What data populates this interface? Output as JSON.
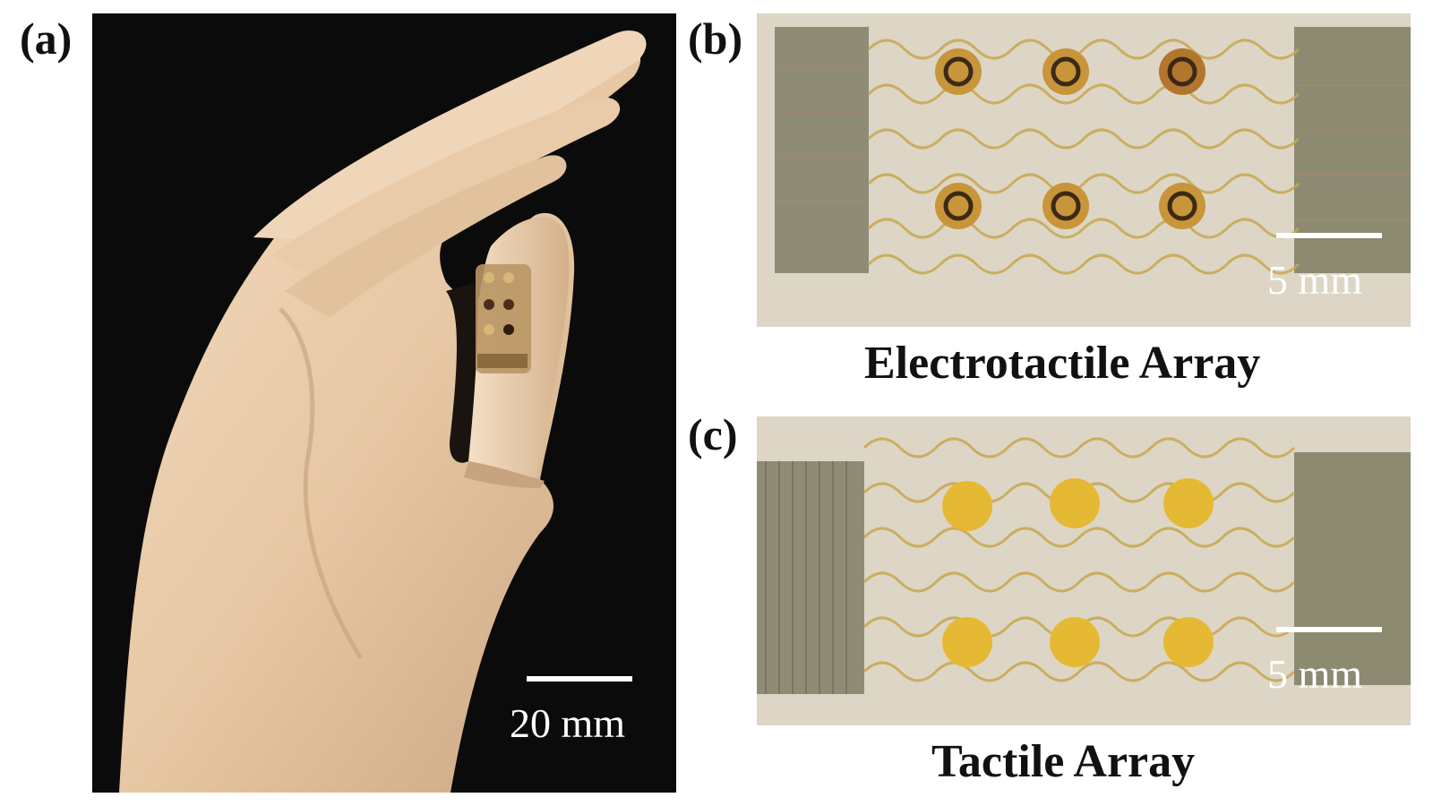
{
  "panels": {
    "a": {
      "label": "(a)",
      "scale_label": "20 mm"
    },
    "b": {
      "label": "(b)",
      "scale_label": "5 mm",
      "caption": "Electrotactile Array"
    },
    "c": {
      "label": "(c)",
      "scale_label": "5 mm",
      "caption": "Tactile Array"
    }
  },
  "colors": {
    "background_dark": "#0b0b0b",
    "skin": "#e8c9a8",
    "substrate": "#ddd6c6",
    "gold_trace": "#c8a54a",
    "electrode_gold": "#e6b934",
    "connector": "#8d8a72"
  }
}
